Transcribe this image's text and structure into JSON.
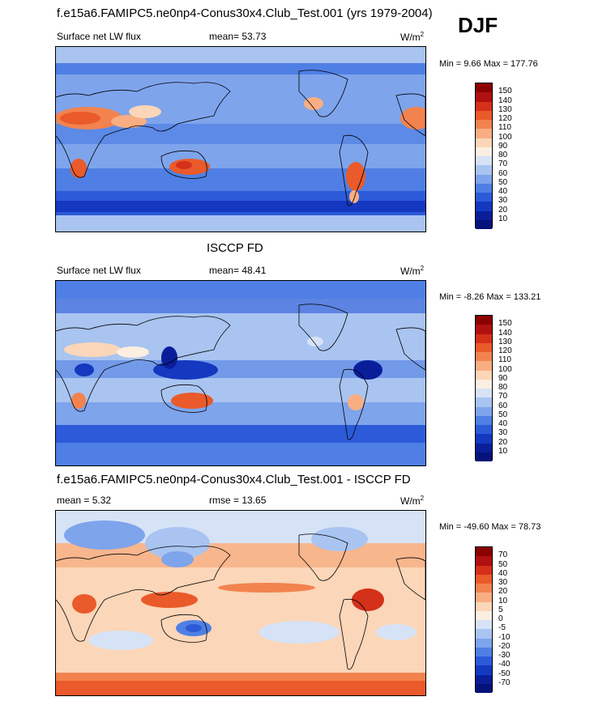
{
  "season": "DJF",
  "panels": [
    {
      "title": "f.e15a6.FAMIPC5.ne0np4-Conus30x4.Club_Test.001 (yrs 1979-2004)",
      "left_label": "Surface net LW flux",
      "center_label": "mean=  53.73",
      "units": "W/m",
      "units_sup": "2",
      "minmax": "Min =   9.66 Max = 177.76",
      "colorbar": {
        "levels": [
          "150",
          "140",
          "130",
          "120",
          "110",
          "100",
          "90",
          "80",
          "70",
          "60",
          "50",
          "40",
          "30",
          "20",
          "10"
        ],
        "colors": [
          "#8b0000",
          "#b01010",
          "#d4301a",
          "#ea5a2a",
          "#f2834e",
          "#f8ae82",
          "#fbd6b8",
          "#fdeee2",
          "#d6e3f6",
          "#a9c4f0",
          "#7ea4ec",
          "#4f7fe4",
          "#2c5ad8",
          "#1538c0",
          "#0a1e9a",
          "#06127a"
        ]
      }
    },
    {
      "title": "ISCCP FD",
      "left_label": "Surface net LW flux",
      "center_label": "mean=  48.41",
      "units": "W/m",
      "units_sup": "2",
      "minmax": "Min =  -8.26 Max = 133.21",
      "colorbar": {
        "levels": [
          "150",
          "140",
          "130",
          "120",
          "110",
          "100",
          "90",
          "80",
          "70",
          "60",
          "50",
          "40",
          "30",
          "20",
          "10"
        ],
        "colors": [
          "#8b0000",
          "#b01010",
          "#d4301a",
          "#ea5a2a",
          "#f2834e",
          "#f8ae82",
          "#fbd6b8",
          "#fdeee2",
          "#d6e3f6",
          "#a9c4f0",
          "#7ea4ec",
          "#4f7fe4",
          "#2c5ad8",
          "#1538c0",
          "#0a1e9a",
          "#06127a"
        ]
      }
    },
    {
      "title": "f.e15a6.FAMIPC5.ne0np4-Conus30x4.Club_Test.001 - ISCCP FD",
      "left_label": "mean =   5.32",
      "center_label": "rmse =  13.65",
      "units": "W/m",
      "units_sup": "2",
      "minmax": "Min = -49.60 Max =  78.73",
      "colorbar": {
        "levels": [
          "70",
          "50",
          "40",
          "30",
          "20",
          "10",
          "5",
          "0",
          "-5",
          "-10",
          "-20",
          "-30",
          "-40",
          "-50",
          "-70"
        ],
        "colors": [
          "#8b0000",
          "#b01010",
          "#d4301a",
          "#ea5a2a",
          "#f2834e",
          "#f8ae82",
          "#fbd6b8",
          "#fdeee2",
          "#d6e3f6",
          "#a9c4f0",
          "#7ea4ec",
          "#4f7fe4",
          "#2c5ad8",
          "#1538c0",
          "#0a1e9a",
          "#06127a"
        ]
      }
    }
  ]
}
